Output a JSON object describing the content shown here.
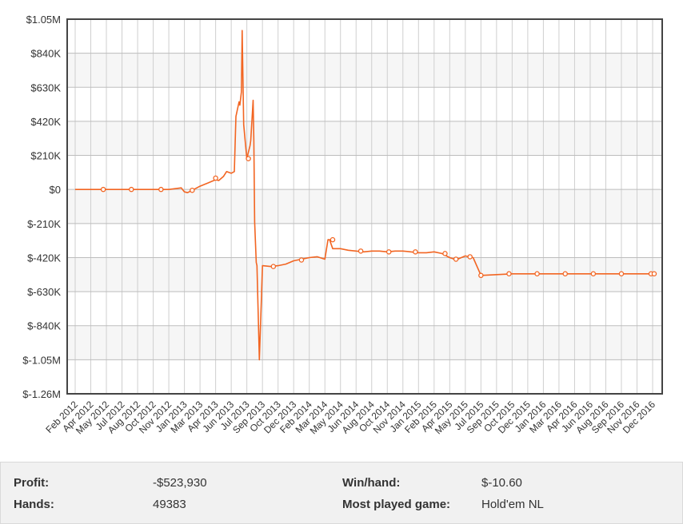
{
  "chart_data": {
    "type": "line",
    "ylim": [
      -1260000,
      1050000
    ],
    "yticks": [
      {
        "v": 1050000,
        "label": "$1.05M"
      },
      {
        "v": 840000,
        "label": "$840K"
      },
      {
        "v": 630000,
        "label": "$630K"
      },
      {
        "v": 420000,
        "label": "$420K"
      },
      {
        "v": 210000,
        "label": "$210K"
      },
      {
        "v": 0,
        "label": "$0"
      },
      {
        "v": -210000,
        "label": "$-210K"
      },
      {
        "v": -420000,
        "label": "$-420K"
      },
      {
        "v": -630000,
        "label": "$-630K"
      },
      {
        "v": -840000,
        "label": "$-840K"
      },
      {
        "v": -1050000,
        "label": "$-1.05M"
      },
      {
        "v": -1260000,
        "label": "$-1.26M"
      }
    ],
    "xticks": [
      "Feb 2012",
      "Apr 2012",
      "May 2012",
      "Jul 2012",
      "Aug 2012",
      "Oct 2012",
      "Nov 2012",
      "Jan 2013",
      "Mar 2013",
      "Apr 2013",
      "Jun 2013",
      "Jul 2013",
      "Sep 2013",
      "Oct 2013",
      "Dec 2013",
      "Feb 2014",
      "Mar 2014",
      "May 2014",
      "Jun 2014",
      "Aug 2014",
      "Oct 2014",
      "Nov 2014",
      "Jan 2015",
      "Feb 2015",
      "Apr 2015",
      "May 2015",
      "Jul 2015",
      "Sep 2015",
      "Oct 2015",
      "Dec 2015",
      "Jan 2016",
      "Mar 2016",
      "Apr 2016",
      "Jun 2016",
      "Aug 2016",
      "Sep 2016",
      "Nov 2016",
      "Dec 2016"
    ],
    "grid": true,
    "line_color": "#f26522",
    "series": [
      {
        "x": [
          0,
          1,
          2,
          3,
          4,
          5,
          6,
          6.8,
          7,
          7.2,
          7.5,
          8,
          8.5,
          9,
          9.2,
          9.5,
          9.7,
          10,
          10.2,
          10.3,
          10.5,
          10.55,
          10.65,
          10.7,
          10.8,
          11,
          11.2,
          11.25,
          11.4,
          11.45,
          11.5,
          11.6,
          11.65,
          11.8,
          12,
          12.5,
          13,
          13.5,
          14,
          14.5,
          15,
          15.5,
          16,
          16.2,
          16.3,
          16.5,
          17,
          17.5,
          18,
          18.5,
          19,
          19.5,
          20,
          20.5,
          21,
          21.5,
          22,
          22.5,
          23,
          23.5,
          24,
          24.3,
          24.5,
          25,
          25.2,
          25.5,
          26,
          27,
          28,
          29,
          30,
          31,
          32,
          33,
          34,
          35,
          36,
          37
        ],
        "y": [
          0,
          0,
          0,
          0,
          0,
          0,
          0,
          10000,
          -15000,
          -20000,
          -5000,
          20000,
          40000,
          60000,
          55000,
          80000,
          110000,
          100000,
          110000,
          450000,
          540000,
          520000,
          600000,
          980000,
          400000,
          190000,
          270000,
          300000,
          550000,
          300000,
          -200000,
          -450000,
          -470000,
          -1050000,
          -470000,
          -475000,
          -470000,
          -460000,
          -440000,
          -430000,
          -420000,
          -415000,
          -430000,
          -310000,
          -310000,
          -365000,
          -365000,
          -375000,
          -380000,
          -385000,
          -380000,
          -380000,
          -385000,
          -380000,
          -380000,
          -385000,
          -390000,
          -390000,
          -385000,
          -395000,
          -420000,
          -430000,
          -430000,
          -410000,
          -415000,
          -420000,
          -530000,
          -525000,
          -520000,
          -520000,
          -520000,
          -520000,
          -520000,
          -520000,
          -520000,
          -520000,
          -520000,
          -520000
        ],
        "markers": [
          [
            1.8,
            0
          ],
          [
            3.6,
            0
          ],
          [
            5.5,
            0
          ],
          [
            7.5,
            -5000
          ],
          [
            9,
            70000
          ],
          [
            11.1,
            190000
          ],
          [
            12.7,
            -475000
          ],
          [
            14.5,
            -435000
          ],
          [
            16.5,
            -310000
          ],
          [
            18.3,
            -380000
          ],
          [
            20.1,
            -385000
          ],
          [
            21.8,
            -385000
          ],
          [
            23.7,
            -395000
          ],
          [
            24.4,
            -430000
          ],
          [
            25.3,
            -415000
          ],
          [
            26,
            -530000
          ],
          [
            27.8,
            -520000
          ],
          [
            29.6,
            -520000
          ],
          [
            31.4,
            -520000
          ],
          [
            33.2,
            -520000
          ],
          [
            35,
            -520000
          ],
          [
            36.9,
            -520000
          ],
          [
            37.1,
            -520000
          ]
        ]
      }
    ]
  },
  "stats": {
    "profit_label": "Profit:",
    "profit_value": "-$523,930",
    "hands_label": "Hands:",
    "hands_value": "49383",
    "winhand_label": "Win/hand:",
    "winhand_value": "$-10.60",
    "game_label": "Most played game:",
    "game_value": "Hold'em NL"
  }
}
